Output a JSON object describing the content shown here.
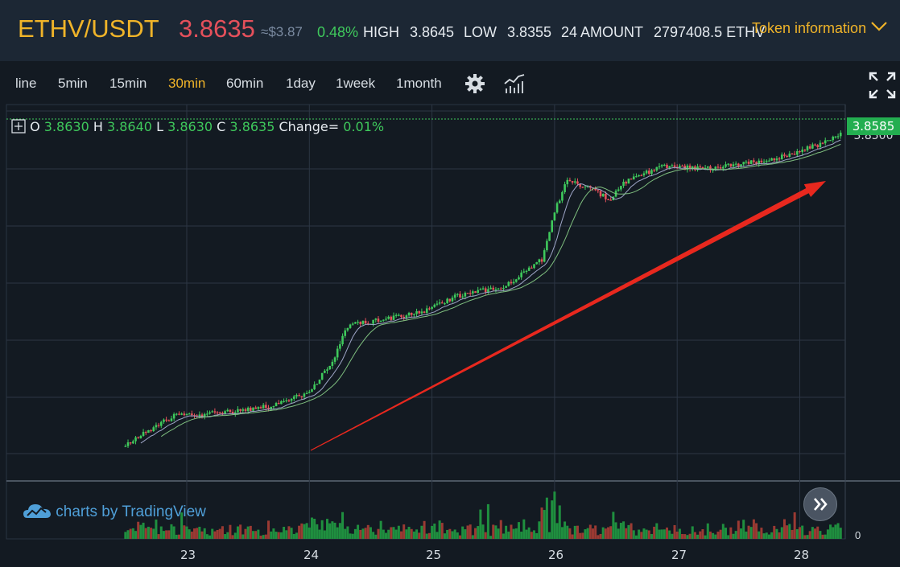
{
  "ticker": {
    "pair": "ETHV/USDT",
    "last_price": "3.8635",
    "approx_usd": "≈$3.87",
    "change_pct": "0.48%",
    "high_label": "HIGH",
    "high_value": "3.8645",
    "low_label": "LOW",
    "low_value": "3.8355",
    "amount_label": "24 AMOUNT",
    "amount_value": "2797408.5 ETHV",
    "token_info_label": "Token information"
  },
  "toolbar": {
    "timeframes": [
      "line",
      "5min",
      "15min",
      "30min",
      "60min",
      "1day",
      "1week",
      "1month"
    ],
    "active_timeframe": "30min",
    "settings_icon": "gear-icon",
    "indicators_icon": "chart-indicators-icon",
    "fullscreen_icon": "expand-arrows-icon"
  },
  "legend": {
    "o_label": "O",
    "o_value": "3.8630",
    "h_label": "H",
    "h_value": "3.8640",
    "l_label": "L",
    "l_value": "3.8630",
    "c_label": "C",
    "c_value": "3.8635",
    "change_label": "Change=",
    "change_value": "0.01%"
  },
  "price_axis": {
    "current_tag": "3.8585",
    "behind_tag": "3.8500"
  },
  "volume_axis": {
    "zero_label": "0"
  },
  "branding": {
    "text": "charts by",
    "brand": "TradingView"
  },
  "colors": {
    "accent": "#f0b429",
    "up": "#3fc95c",
    "down": "#e5505b",
    "annotation_arrow": "#e8281e"
  },
  "chart_data": {
    "type": "candlestick",
    "xlabel": "",
    "ylabel": "",
    "x_tick_labels": [
      "23",
      "24",
      "25",
      "26",
      "27",
      "28"
    ],
    "annotation": "red arrow pointing up-right indicating uptrend",
    "price_path": [
      [
        22.5,
        0.02
      ],
      [
        22.7,
        0.07
      ],
      [
        22.9,
        0.11
      ],
      [
        23.3,
        0.12
      ],
      [
        23.7,
        0.14
      ],
      [
        24.0,
        0.18
      ],
      [
        24.2,
        0.28
      ],
      [
        24.3,
        0.38
      ],
      [
        24.6,
        0.4
      ],
      [
        24.9,
        0.42
      ],
      [
        25.2,
        0.47
      ],
      [
        25.6,
        0.5
      ],
      [
        25.9,
        0.58
      ],
      [
        26.0,
        0.72
      ],
      [
        26.1,
        0.82
      ],
      [
        26.3,
        0.79
      ],
      [
        26.45,
        0.76
      ],
      [
        26.6,
        0.82
      ],
      [
        26.9,
        0.86
      ],
      [
        27.2,
        0.85
      ],
      [
        27.6,
        0.87
      ],
      [
        27.9,
        0.89
      ],
      [
        28.2,
        0.93
      ],
      [
        28.35,
        0.96
      ]
    ]
  }
}
